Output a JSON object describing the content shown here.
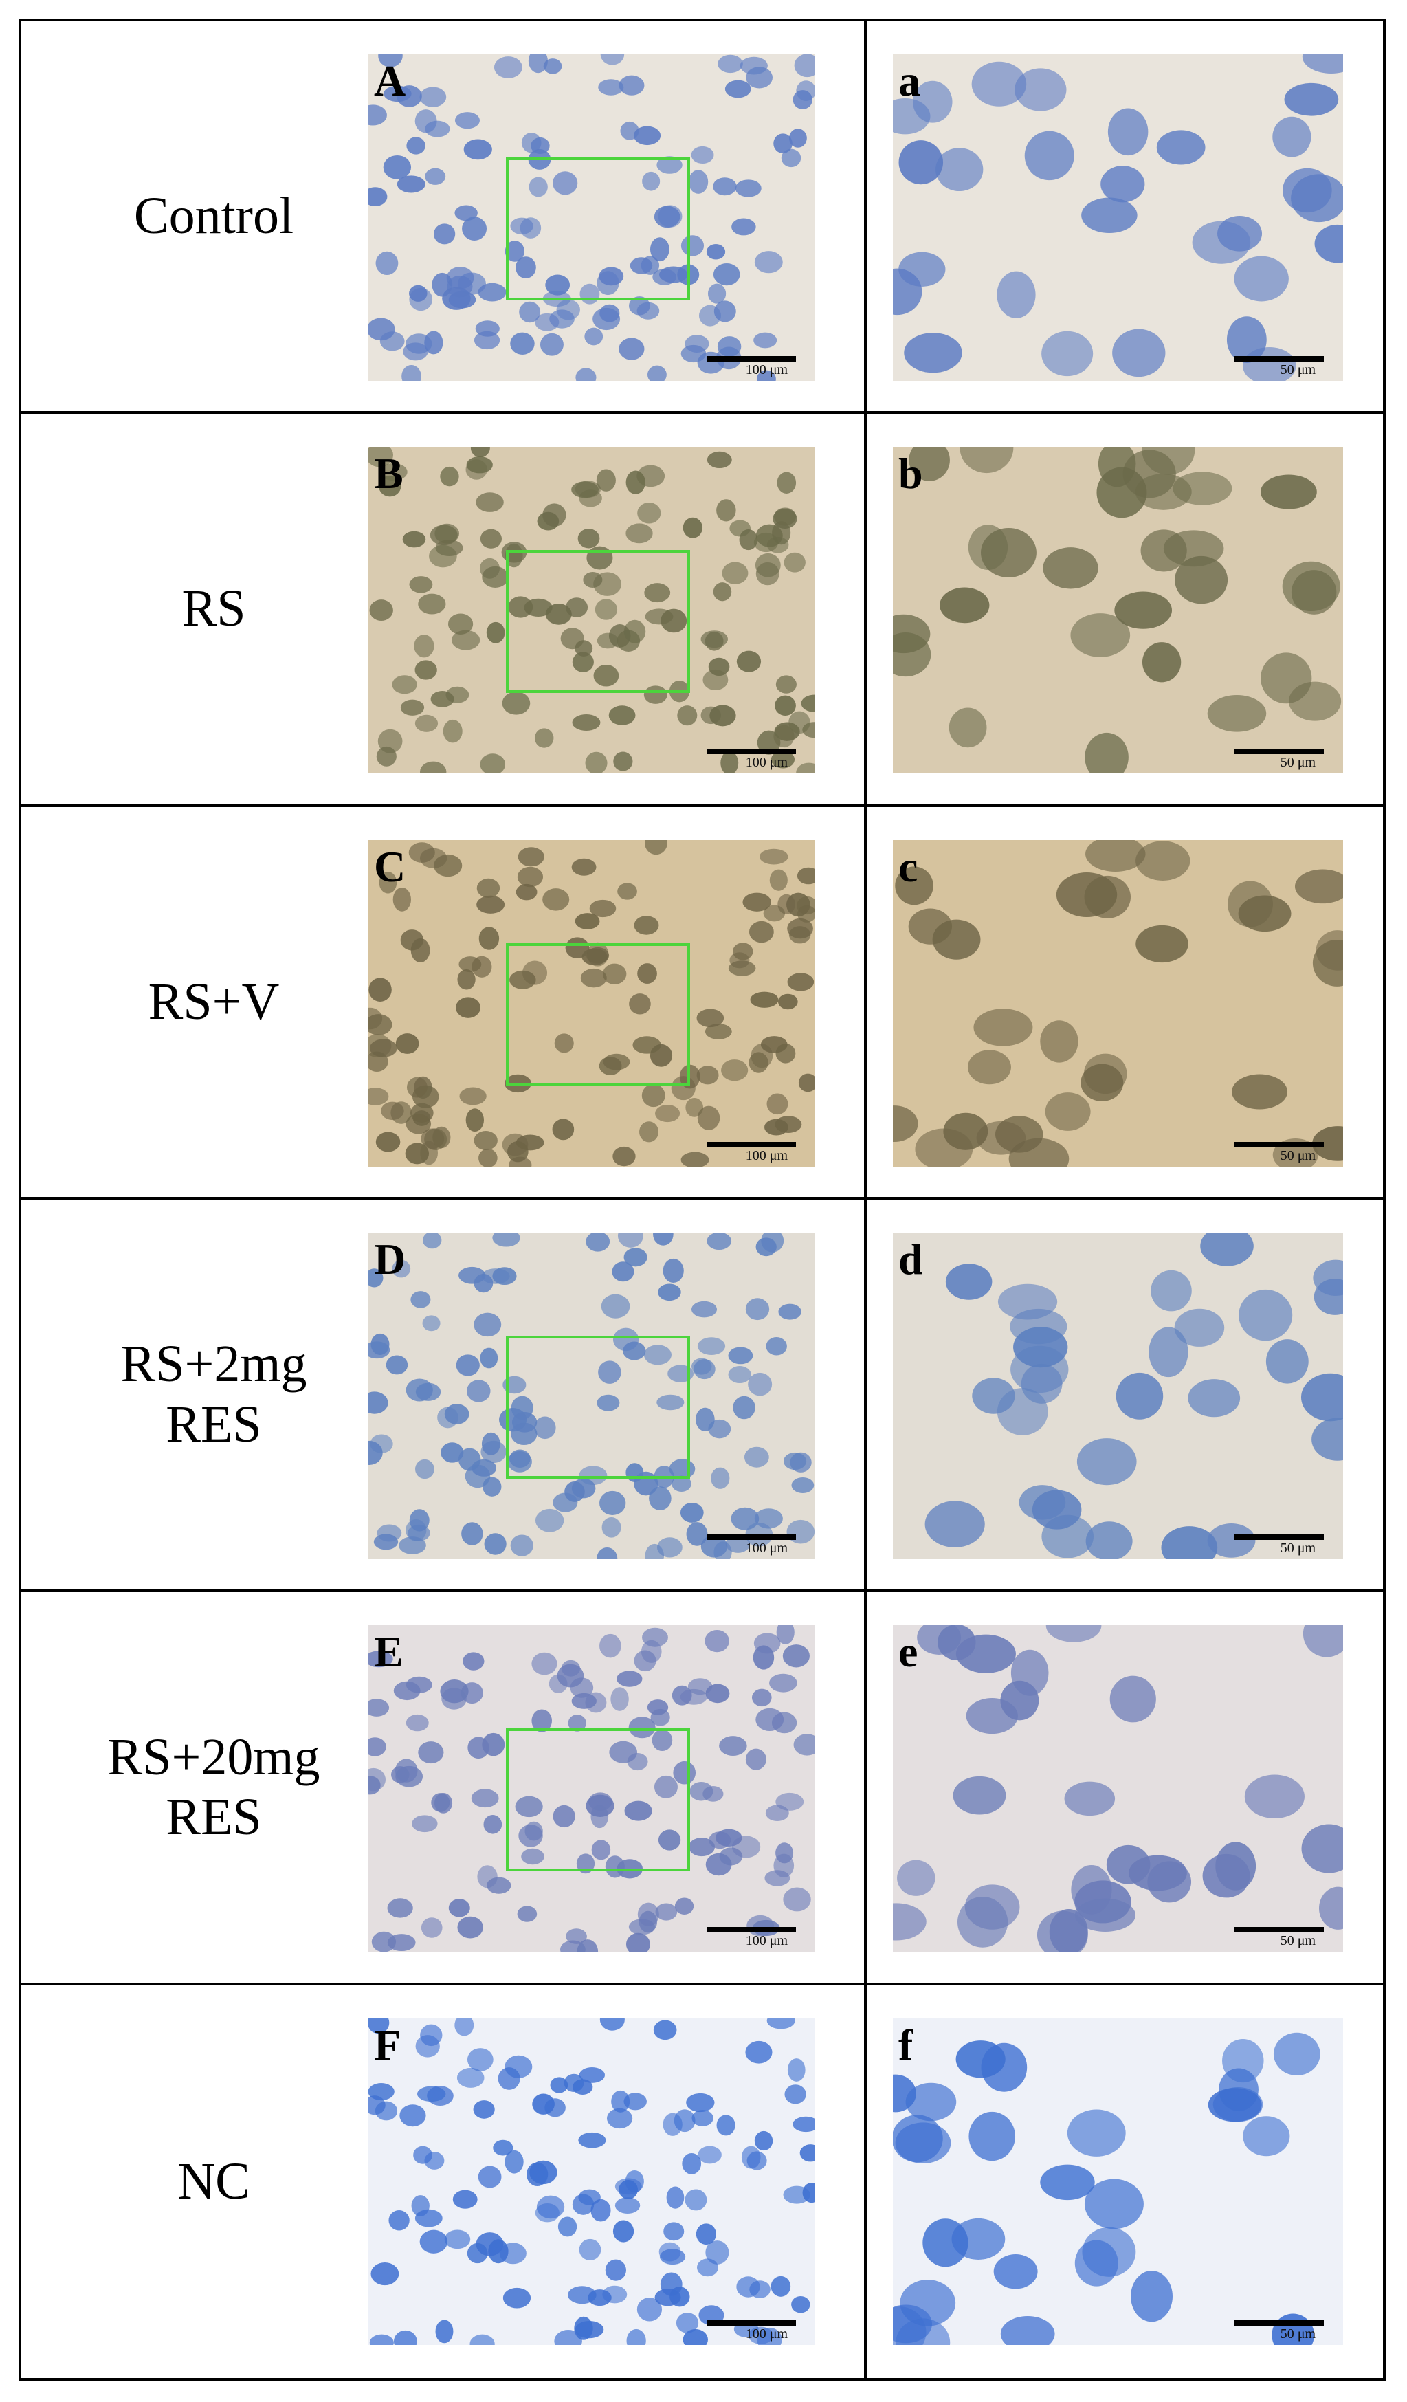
{
  "rows": [
    {
      "label": [
        "Control"
      ],
      "low": {
        "letter": "A",
        "scale": "100 μm"
      },
      "high": {
        "letter": "a",
        "scale": "50 μm"
      }
    },
    {
      "label": [
        "RS"
      ],
      "low": {
        "letter": "B",
        "scale": "100 μm"
      },
      "high": {
        "letter": "b",
        "scale": "50 μm"
      }
    },
    {
      "label": [
        "RS+V"
      ],
      "low": {
        "letter": "C",
        "scale": "100 μm"
      },
      "high": {
        "letter": "c",
        "scale": "50 μm"
      }
    },
    {
      "label": [
        "RS+2mg",
        "RES"
      ],
      "low": {
        "letter": "D",
        "scale": "100 μm"
      },
      "high": {
        "letter": "d",
        "scale": "50 μm"
      }
    },
    {
      "label": [
        "RS+20mg",
        "RES"
      ],
      "low": {
        "letter": "E",
        "scale": "100 μm"
      },
      "high": {
        "letter": "e",
        "scale": "50 μm"
      }
    },
    {
      "label": [
        "NC"
      ],
      "low": {
        "letter": "F",
        "scale": "100 μm"
      },
      "high": {
        "letter": "f",
        "scale": "50 μm"
      }
    }
  ]
}
